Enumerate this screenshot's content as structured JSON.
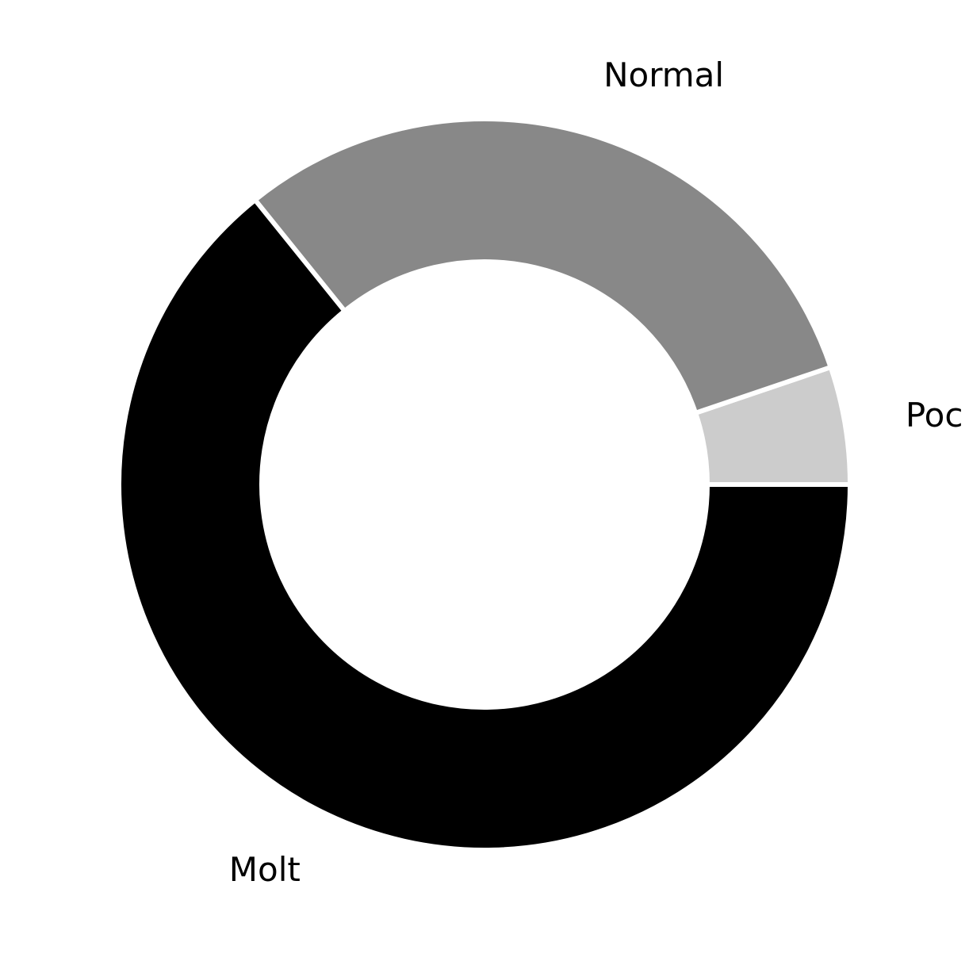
{
  "chart_data": {
    "type": "pie",
    "donut": true,
    "title": "",
    "categories": [
      "Poc",
      "Normal",
      "Molt"
    ],
    "values": [
      5.2,
      30.6,
      64.2
    ],
    "colors": [
      "#cccccc",
      "#888888",
      "#000000"
    ],
    "start_angle_deg": 0,
    "direction": "counterclockwise",
    "legend": "none"
  }
}
